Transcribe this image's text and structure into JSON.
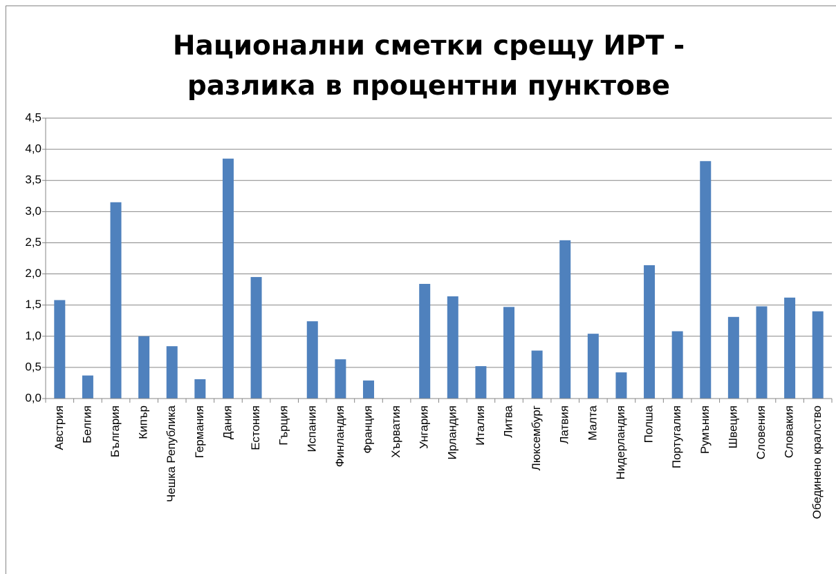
{
  "chart_data": {
    "type": "bar",
    "title": "Национални сметки срещу ИРТ - разлика в процентни пунктове",
    "categories": [
      "Австрия",
      "Белгия",
      "България",
      "Кипър",
      "Чешка Република",
      "Германия",
      "Дания",
      "Естония",
      "Гърция",
      "Испания",
      "Финландия",
      "Франция",
      "Хърватия",
      "Унгария",
      "Ирландия",
      "Италия",
      "Литва",
      "Люксембург",
      "Латвия",
      "Малта",
      "Нидерландия",
      "Полша",
      "Португалия",
      "Румъния",
      "Швеция",
      "Словения",
      "Словакия",
      "Обединено кралство"
    ],
    "values": [
      1.58,
      0.37,
      3.15,
      1.0,
      0.84,
      0.31,
      3.85,
      1.95,
      null,
      1.24,
      0.63,
      0.29,
      null,
      1.84,
      1.64,
      0.52,
      1.47,
      0.77,
      2.54,
      1.04,
      0.42,
      2.14,
      1.08,
      3.81,
      1.31,
      1.48,
      1.62,
      1.4
    ],
    "color": "#4f81bd",
    "ylim": [
      0,
      4.5
    ],
    "yticks": [
      {
        "value": 0,
        "label": "0,0"
      },
      {
        "value": 0.5,
        "label": "0,5"
      },
      {
        "value": 1,
        "label": "1,0"
      },
      {
        "value": 1.5,
        "label": "1,5"
      },
      {
        "value": 2,
        "label": "2,0"
      },
      {
        "value": 2.5,
        "label": "2,5"
      },
      {
        "value": 3,
        "label": "3,0"
      },
      {
        "value": 3.5,
        "label": "3,5"
      },
      {
        "value": 4,
        "label": "4,0"
      },
      {
        "value": 4.5,
        "label": "4,5"
      }
    ],
    "grid": true
  }
}
